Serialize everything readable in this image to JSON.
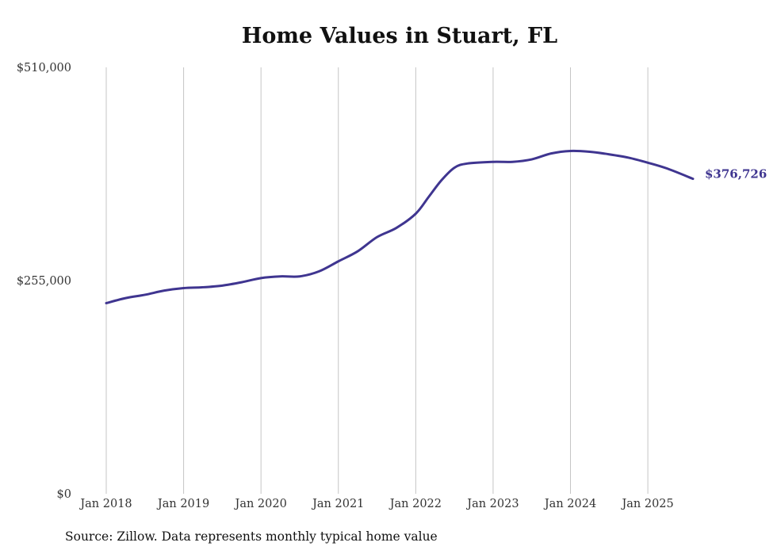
{
  "chart_data": {
    "type": "line",
    "title": "Home Values in Stuart, FL",
    "xlabel": "",
    "ylabel": "",
    "x_tick_labels": [
      "Jan 2018",
      "Jan 2019",
      "Jan 2020",
      "Jan 2021",
      "Jan 2022",
      "Jan 2023",
      "Jan 2024",
      "Jan 2025"
    ],
    "y_tick_labels": [
      "$510,000",
      "$255,000",
      "$0"
    ],
    "y_tick_values": [
      510000,
      255000,
      0
    ],
    "ylim": [
      0,
      510000
    ],
    "xlim": [
      2018.0,
      2025.583
    ],
    "grid": "vertical",
    "line_color": "#3f3590",
    "end_label": "$376,726",
    "source_note": "Source: Zillow. Data represents monthly typical home value",
    "series": [
      {
        "name": "Typical home value",
        "x": [
          2018.0,
          2018.25,
          2018.5,
          2018.75,
          2019.0,
          2019.25,
          2019.5,
          2019.75,
          2020.0,
          2020.25,
          2020.5,
          2020.75,
          2021.0,
          2021.25,
          2021.5,
          2021.75,
          2022.0,
          2022.167,
          2022.333,
          2022.5,
          2022.667,
          2023.0,
          2023.25,
          2023.5,
          2023.75,
          2024.0,
          2024.25,
          2024.5,
          2024.75,
          2025.0,
          2025.25,
          2025.583
        ],
        "values": [
          228000,
          234000,
          238000,
          243000,
          246000,
          247000,
          249000,
          253000,
          258000,
          260000,
          260000,
          266000,
          278000,
          290000,
          307000,
          318000,
          335000,
          355000,
          375000,
          390000,
          395000,
          397000,
          397000,
          400000,
          407000,
          410000,
          409000,
          406000,
          402000,
          396000,
          389000,
          376726
        ]
      }
    ]
  }
}
